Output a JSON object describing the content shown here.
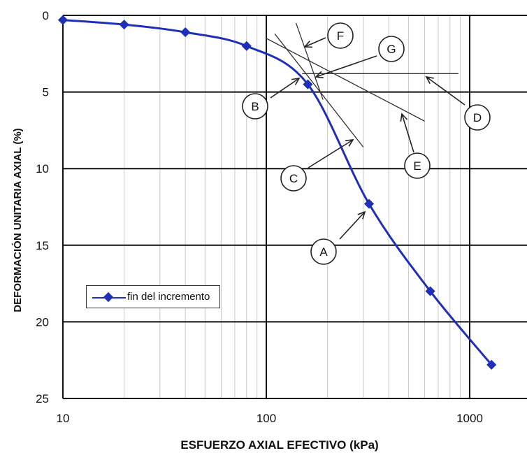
{
  "chart_data": {
    "type": "line",
    "xlabel": "ESFUERZO AXIAL EFECTIVO (kPa)",
    "ylabel": "DEFORMACIÓN UNITARIA AXIAL (%)",
    "x_scale": "log",
    "xlim": [
      10,
      1500
    ],
    "ylim": [
      0,
      25
    ],
    "y_inverted": true,
    "x_ticks": [
      "10",
      "100",
      "1000"
    ],
    "y_ticks": [
      "0",
      "5",
      "10",
      "15",
      "20",
      "25"
    ],
    "grid": true,
    "legend_placement": "lower-left",
    "series": [
      {
        "name": "fin del incremento",
        "color": "#1f2fb8",
        "x": [
          10,
          20,
          40,
          80,
          160,
          320,
          640,
          1280
        ],
        "y": [
          0.3,
          0.6,
          1.1,
          2.0,
          4.5,
          12.3,
          18.0,
          22.8
        ]
      }
    ],
    "construction_lines": [
      {
        "label": "C",
        "x": [
          110,
          300
        ],
        "y": [
          1.2,
          8.6
        ]
      },
      {
        "label": "D",
        "x": [
          150,
          880
        ],
        "y": [
          3.8,
          3.8
        ]
      },
      {
        "label": "E",
        "x": [
          100,
          600
        ],
        "y": [
          1.5,
          6.9
        ]
      },
      {
        "label": "F",
        "x": [
          140,
          190
        ],
        "y": [
          0.5,
          5.5
        ]
      }
    ],
    "annotations": [
      "A",
      "B",
      "C",
      "D",
      "E",
      "F",
      "G"
    ]
  }
}
